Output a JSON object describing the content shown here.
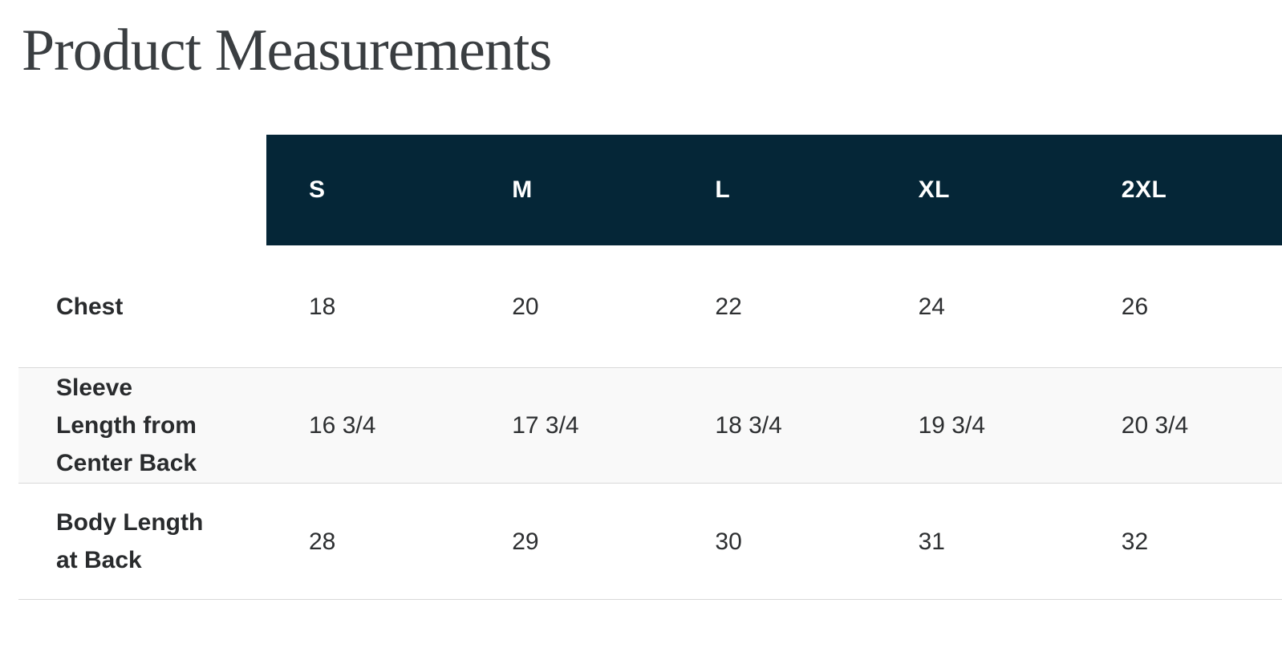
{
  "title": "Product Measurements",
  "table": {
    "columns": [
      "S",
      "M",
      "L",
      "XL",
      "2XL"
    ],
    "rows": [
      {
        "label": "Chest",
        "values": [
          "18",
          "20",
          "22",
          "24",
          "26"
        ]
      },
      {
        "label": "Sleeve\nLength from\nCenter Back",
        "values": [
          "16 3/4",
          "17 3/4",
          "18 3/4",
          "19 3/4",
          "20 3/4"
        ]
      },
      {
        "label": "Body Length\nat Back",
        "values": [
          "28",
          "29",
          "30",
          "31",
          "32"
        ]
      }
    ]
  },
  "colors": {
    "header_bg": "#052637",
    "header_text": "#ffffff",
    "alt_row_bg": "#f9f9f9",
    "border": "#d9d9d9",
    "title_text": "#3a3e41",
    "body_text": "#2d2f31"
  }
}
